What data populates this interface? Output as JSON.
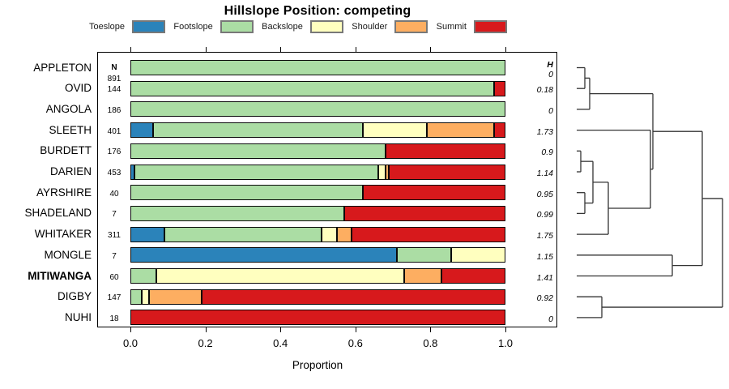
{
  "title": "Hillslope Position: competing",
  "xlabel": "Proportion",
  "columns": {
    "n_header": "N",
    "h_header": "H"
  },
  "legend": [
    {
      "label": "Toeslope",
      "color": "#2B83BA"
    },
    {
      "label": "Footslope",
      "color": "#ABDDA4"
    },
    {
      "label": "Backslope",
      "color": "#FFFFBF"
    },
    {
      "label": "Shoulder",
      "color": "#FDAE61"
    },
    {
      "label": "Summit",
      "color": "#D7191C"
    }
  ],
  "chart_data": {
    "type": "bar",
    "stacked": true,
    "orientation": "horizontal",
    "title": "Hillslope Position: competing",
    "xlabel": "Proportion",
    "xlim": [
      0,
      1
    ],
    "x_ticks": [
      "0.0",
      "0.2",
      "0.4",
      "0.6",
      "0.8",
      "1.0"
    ],
    "x_tick_values": [
      0,
      0.2,
      0.4,
      0.6,
      0.8,
      1.0
    ],
    "categories": [
      "Toeslope",
      "Footslope",
      "Backslope",
      "Shoulder",
      "Summit"
    ],
    "category_colors": {
      "Toeslope": "#2B83BA",
      "Footslope": "#ABDDA4",
      "Backslope": "#FFFFBF",
      "Shoulder": "#FDAE61",
      "Summit": "#D7191C"
    },
    "rows": [
      {
        "label": "APPLETON",
        "n": 891,
        "h": "0",
        "bold": false,
        "values": [
          0,
          1,
          0,
          0,
          0
        ]
      },
      {
        "label": "OVID",
        "n": 144,
        "h": "0.18",
        "bold": false,
        "values": [
          0,
          0.97,
          0,
          0,
          0.03
        ]
      },
      {
        "label": "ANGOLA",
        "n": 186,
        "h": "0",
        "bold": false,
        "values": [
          0,
          1,
          0,
          0,
          0
        ]
      },
      {
        "label": "SLEETH",
        "n": 401,
        "h": "1.73",
        "bold": false,
        "values": [
          0.06,
          0.56,
          0.17,
          0.18,
          0.03
        ]
      },
      {
        "label": "BURDETT",
        "n": 176,
        "h": "0.9",
        "bold": false,
        "values": [
          0,
          0.68,
          0,
          0,
          0.32
        ]
      },
      {
        "label": "DARIEN",
        "n": 453,
        "h": "1.14",
        "bold": false,
        "values": [
          0.01,
          0.65,
          0.02,
          0.01,
          0.31
        ]
      },
      {
        "label": "AYRSHIRE",
        "n": 40,
        "h": "0.95",
        "bold": false,
        "values": [
          0,
          0.62,
          0,
          0,
          0.38
        ]
      },
      {
        "label": "SHADELAND",
        "n": 7,
        "h": "0.99",
        "bold": false,
        "values": [
          0,
          0.57,
          0,
          0,
          0.43
        ]
      },
      {
        "label": "WHITAKER",
        "n": 311,
        "h": "1.75",
        "bold": false,
        "values": [
          0.09,
          0.42,
          0.04,
          0.04,
          0.41
        ]
      },
      {
        "label": "MONGLE",
        "n": 7,
        "h": "1.15",
        "bold": false,
        "values": [
          0.71,
          0.145,
          0.145,
          0,
          0
        ]
      },
      {
        "label": "MITIWANGA",
        "n": 60,
        "h": "1.41",
        "bold": true,
        "values": [
          0,
          0.07,
          0.66,
          0.1,
          0.17
        ]
      },
      {
        "label": "DIGBY",
        "n": 147,
        "h": "0.92",
        "bold": false,
        "values": [
          0,
          0.03,
          0.02,
          0.14,
          0.81
        ]
      },
      {
        "label": "NUHI",
        "n": 18,
        "h": "0",
        "bold": false,
        "values": [
          0,
          0,
          0,
          0,
          1
        ]
      }
    ],
    "dendrogram": {
      "leaf_x": 712,
      "merges": [
        {
          "id": "M0",
          "children": [
            "L0",
            "L1"
          ],
          "x": 722
        },
        {
          "id": "M1",
          "children": [
            "M0",
            "L2"
          ],
          "x": 728
        },
        {
          "id": "M2",
          "children": [
            "L4",
            "L5"
          ],
          "x": 717
        },
        {
          "id": "M3",
          "children": [
            "L6",
            "L7"
          ],
          "x": 722
        },
        {
          "id": "M4",
          "children": [
            "M2",
            "M3"
          ],
          "x": 732
        },
        {
          "id": "M5",
          "children": [
            "M4",
            "L8"
          ],
          "x": 751
        },
        {
          "id": "M6",
          "children": [
            "L3",
            "M5"
          ],
          "x": 803
        },
        {
          "id": "M7",
          "children": [
            "M1",
            "M6"
          ],
          "x": 806
        },
        {
          "id": "M8",
          "children": [
            "L9",
            "L10"
          ],
          "x": 830
        },
        {
          "id": "M9",
          "children": [
            "M7",
            "M8"
          ],
          "x": 867
        },
        {
          "id": "M10",
          "children": [
            "L11",
            "L12"
          ],
          "x": 743
        },
        {
          "id": "M11",
          "children": [
            "M9",
            "M10"
          ],
          "x": 892
        }
      ]
    }
  }
}
